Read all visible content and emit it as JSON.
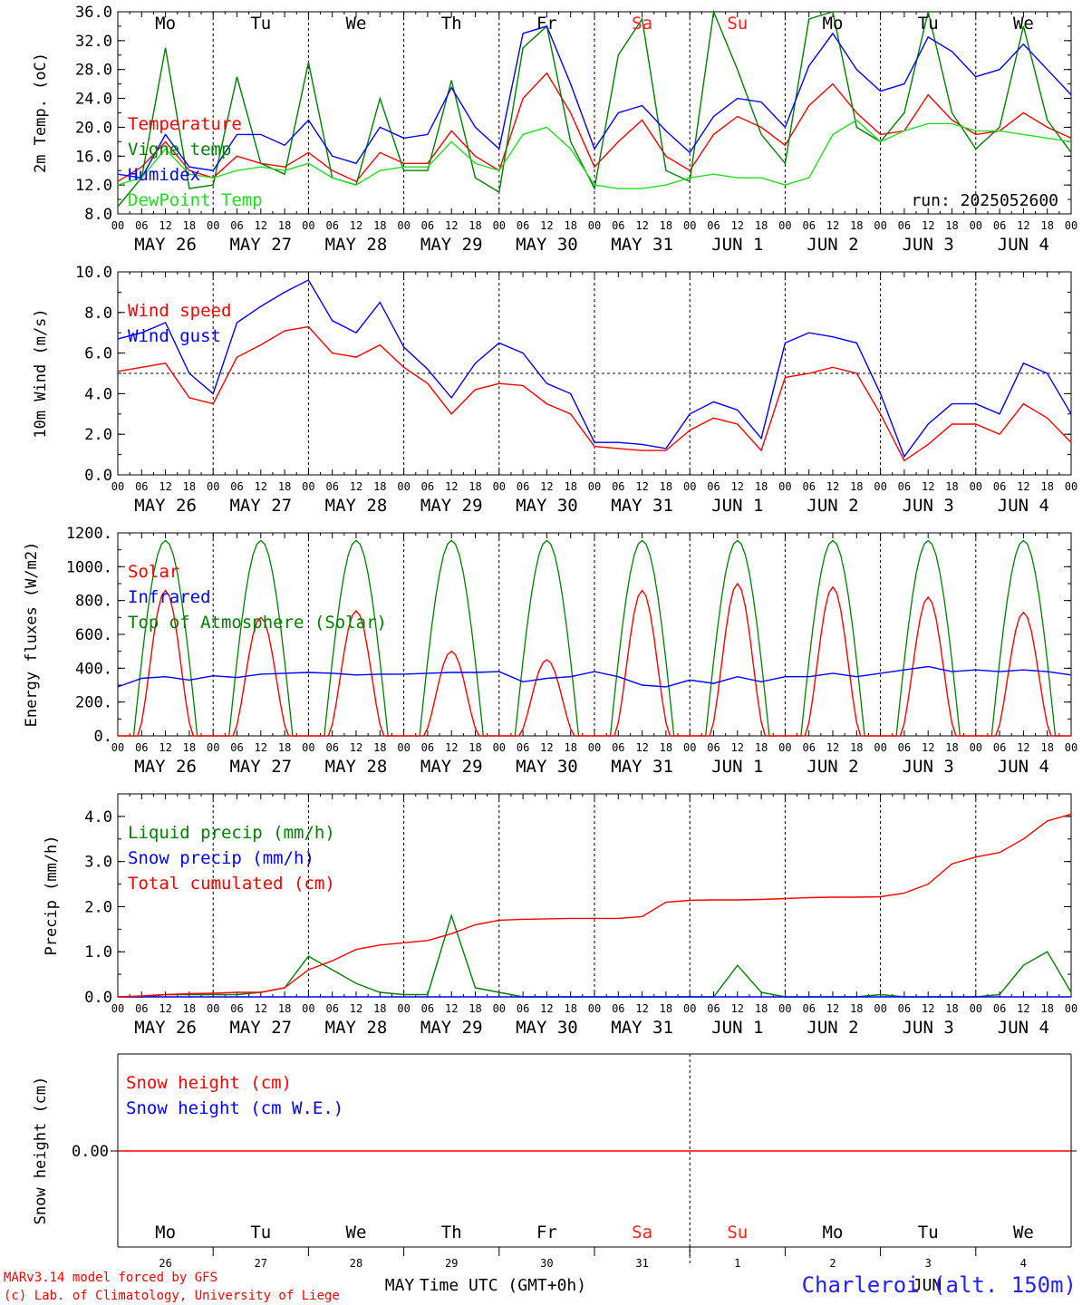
{
  "days": {
    "weekday_labels": [
      "Mo",
      "Tu",
      "We",
      "Th",
      "Fr",
      "Sa",
      "Su",
      "Mo",
      "Tu",
      "We"
    ],
    "weekend_color": "#ff2020",
    "date_labels": [
      "MAY 26",
      "MAY 27",
      "MAY 28",
      "MAY 29",
      "MAY 30",
      "MAY 31",
      "JUN  1",
      "JUN  2",
      "JUN  3",
      "JUN  4"
    ],
    "hour_ticks": [
      "00",
      "06",
      "12",
      "18"
    ],
    "final_hour": "00",
    "bottom_day_numbers": [
      "26",
      "27",
      "28",
      "29",
      "30",
      "31",
      "1",
      "2",
      "3",
      "4"
    ],
    "bottom_months": [
      "MAY",
      "JUN"
    ]
  },
  "footer": {
    "model": "MARv3.14 model forced by GFS",
    "credit": "(c) Lab. of Climatology, University of Liege",
    "axis_title": "Time UTC (GMT+0h)",
    "location": "Charleroi (alt. 150m)"
  },
  "colors": {
    "red": "#ff0000",
    "green": "#008000",
    "blue": "#0000ff",
    "lightgreen": "#22dd22",
    "axis": "#000000"
  },
  "chart_data": [
    {
      "id": "temperature",
      "type": "line",
      "ylabel": "2m Temp. (oC)",
      "ylim": [
        8,
        36
      ],
      "yticks": [
        8.0,
        12.0,
        16.0,
        20.0,
        24.0,
        28.0,
        32.0,
        36.0
      ],
      "ytick_labels": [
        "8.0",
        "12.0",
        "16.0",
        "20.0",
        "24.0",
        "28.0",
        "32.0",
        "36.0"
      ],
      "annotation": "run: 2025052600",
      "x_hours": [
        0,
        6,
        12,
        18,
        24,
        30,
        36,
        42,
        48,
        54,
        60,
        66,
        72,
        78,
        84,
        90,
        96,
        102,
        108,
        114,
        120,
        126,
        132,
        138,
        144,
        150,
        156,
        162,
        168,
        174,
        180,
        186,
        192,
        198,
        204,
        210,
        216,
        222,
        228,
        234,
        240
      ],
      "series": [
        {
          "name": "Temperature",
          "color": "#ff0000",
          "values": [
            12.5,
            14.5,
            18.0,
            14.0,
            13.0,
            16.0,
            15.0,
            14.5,
            16.5,
            14.0,
            12.5,
            16.5,
            15.0,
            15.0,
            19.5,
            16.0,
            14.0,
            24.0,
            27.5,
            22.0,
            14.5,
            18.0,
            21.0,
            16.0,
            14.0,
            19.0,
            21.5,
            20.0,
            17.5,
            23.0,
            26.0,
            22.0,
            19.0,
            19.5,
            24.5,
            21.0,
            19.0,
            19.5,
            22.0,
            20.0,
            18.5
          ]
        },
        {
          "name": "Vigne temp",
          "color": "#008000",
          "values": [
            9.0,
            13.0,
            31.0,
            11.5,
            12.0,
            27.0,
            15.0,
            13.5,
            29.0,
            13.0,
            12.0,
            24.0,
            14.0,
            14.0,
            26.5,
            13.0,
            11.0,
            31.0,
            34.0,
            18.0,
            11.5,
            30.0,
            35.0,
            14.0,
            12.5,
            36.0,
            28.0,
            19.0,
            15.0,
            35.0,
            36.0,
            20.0,
            18.0,
            22.0,
            36.0,
            22.0,
            17.0,
            20.0,
            34.0,
            21.0,
            16.5
          ]
        },
        {
          "name": "Humidex",
          "color": "#0000ff",
          "values": [
            13.5,
            13.0,
            19.0,
            14.5,
            14.0,
            19.0,
            19.0,
            17.5,
            21.0,
            16.0,
            15.0,
            20.0,
            18.5,
            19.0,
            25.5,
            20.0,
            17.0,
            33.0,
            34.0,
            26.0,
            17.0,
            22.0,
            23.0,
            19.5,
            16.5,
            21.5,
            24.0,
            23.5,
            20.0,
            28.5,
            33.0,
            28.0,
            25.0,
            26.0,
            32.5,
            30.5,
            27.0,
            28.0,
            31.5,
            28.0,
            24.5
          ]
        },
        {
          "name": "DewPoint Temp",
          "color": "#22dd22",
          "values": [
            12.0,
            13.0,
            17.0,
            13.5,
            13.0,
            14.0,
            14.5,
            14.0,
            15.0,
            13.0,
            12.0,
            14.0,
            14.5,
            14.5,
            18.0,
            15.0,
            14.0,
            19.0,
            20.0,
            17.0,
            12.0,
            11.5,
            11.5,
            12.0,
            13.0,
            13.5,
            13.0,
            13.0,
            12.0,
            13.0,
            19.0,
            21.0,
            18.0,
            19.5,
            20.5,
            20.5,
            19.5,
            19.5,
            19.0,
            18.5,
            18.0
          ]
        }
      ]
    },
    {
      "id": "wind",
      "type": "line",
      "ylabel": "10m Wind (m/s)",
      "ylim": [
        0,
        10
      ],
      "yticks": [
        0,
        2,
        4,
        6,
        8,
        10
      ],
      "ytick_labels": [
        "0.0",
        "2.0",
        "4.0",
        "6.0",
        "8.0",
        "10.0"
      ],
      "reference_line": 5.0,
      "x_hours": [
        0,
        6,
        12,
        18,
        24,
        30,
        36,
        42,
        48,
        54,
        60,
        66,
        72,
        78,
        84,
        90,
        96,
        102,
        108,
        114,
        120,
        126,
        132,
        138,
        144,
        150,
        156,
        162,
        168,
        174,
        180,
        186,
        192,
        198,
        204,
        210,
        216,
        222,
        228,
        234,
        240
      ],
      "series": [
        {
          "name": "Wind speed",
          "color": "#ff0000",
          "values": [
            5.1,
            5.3,
            5.5,
            3.8,
            3.5,
            5.8,
            6.4,
            7.1,
            7.3,
            6.0,
            5.8,
            6.4,
            5.3,
            4.5,
            3.0,
            4.2,
            4.5,
            4.4,
            3.5,
            3.0,
            1.4,
            1.3,
            1.2,
            1.2,
            2.2,
            2.8,
            2.5,
            1.2,
            4.8,
            5.0,
            5.3,
            5.0,
            3.0,
            0.7,
            1.5,
            2.5,
            2.5,
            2.0,
            3.5,
            2.8,
            1.6
          ]
        },
        {
          "name": "Wind gust",
          "color": "#0000ff",
          "values": [
            6.7,
            7.0,
            7.5,
            5.0,
            4.0,
            7.5,
            8.3,
            9.0,
            9.6,
            7.6,
            7.0,
            8.5,
            6.3,
            5.2,
            3.8,
            5.5,
            6.5,
            6.0,
            4.5,
            4.0,
            1.6,
            1.6,
            1.5,
            1.3,
            3.0,
            3.6,
            3.2,
            1.8,
            6.5,
            7.0,
            6.8,
            6.5,
            4.0,
            0.9,
            2.5,
            3.5,
            3.5,
            3.0,
            5.5,
            5.0,
            3.0
          ]
        }
      ]
    },
    {
      "id": "energy",
      "type": "line",
      "ylabel": "Energy fluxes (W/m2)",
      "ylim": [
        0,
        1200
      ],
      "yticks": [
        0,
        200,
        400,
        600,
        800,
        1000,
        1200
      ],
      "ytick_labels": [
        "0.",
        "200.",
        "400.",
        "600.",
        "800.",
        "1000.",
        "1200."
      ],
      "solar_peaks": [
        860,
        700,
        740,
        500,
        450,
        860,
        900,
        880,
        820,
        730
      ],
      "toa_peak": 1155,
      "infrared_values": [
        290,
        340,
        350,
        330,
        355,
        345,
        365,
        370,
        375,
        370,
        360,
        365,
        365,
        370,
        375,
        375,
        380,
        320,
        340,
        350,
        380,
        350,
        300,
        290,
        330,
        310,
        350,
        320,
        350,
        350,
        370,
        350,
        370,
        390,
        410,
        380,
        390,
        380,
        390,
        380,
        360
      ],
      "series": [
        {
          "name": "Solar",
          "color": "#ff0000"
        },
        {
          "name": "Infrared",
          "color": "#0000ff"
        },
        {
          "name": "Top of Atmosphere (Solar)",
          "color": "#008000"
        }
      ]
    },
    {
      "id": "precip",
      "type": "line",
      "ylabel": "Precip (mm/h)",
      "ylim": [
        0,
        4.5
      ],
      "yticks": [
        0,
        1,
        2,
        3,
        4
      ],
      "ytick_labels": [
        "0.0",
        "1.0",
        "2.0",
        "3.0",
        "4.0"
      ],
      "x_hours": [
        0,
        6,
        12,
        18,
        24,
        30,
        36,
        42,
        48,
        54,
        60,
        66,
        72,
        78,
        84,
        90,
        96,
        102,
        108,
        114,
        120,
        126,
        132,
        138,
        144,
        150,
        156,
        162,
        168,
        174,
        180,
        186,
        192,
        198,
        204,
        210,
        216,
        222,
        228,
        234,
        240
      ],
      "series": [
        {
          "name": "Liquid precip (mm/h)",
          "color": "#008000",
          "values": [
            0,
            0,
            0.05,
            0.05,
            0.05,
            0.05,
            0.1,
            0.2,
            0.9,
            0.6,
            0.3,
            0.1,
            0.05,
            0.05,
            1.8,
            0.2,
            0.1,
            0,
            0,
            0,
            0,
            0,
            0,
            0,
            0,
            0,
            0.7,
            0.1,
            0,
            0,
            0,
            0,
            0.05,
            0,
            0,
            0,
            0,
            0.05,
            0.7,
            1.0,
            0.1
          ]
        },
        {
          "name": "Snow precip (mm/h)",
          "color": "#0000ff",
          "values": [
            0,
            0,
            0,
            0,
            0,
            0,
            0,
            0,
            0,
            0,
            0,
            0,
            0,
            0,
            0,
            0,
            0,
            0,
            0,
            0,
            0,
            0,
            0,
            0,
            0,
            0,
            0,
            0,
            0,
            0,
            0,
            0,
            0,
            0,
            0,
            0,
            0,
            0,
            0,
            0,
            0
          ]
        },
        {
          "name": "Total cumulated (cm)",
          "color": "#ff0000",
          "values": [
            0.0,
            0.02,
            0.05,
            0.07,
            0.08,
            0.1,
            0.1,
            0.2,
            0.6,
            0.8,
            1.05,
            1.15,
            1.2,
            1.25,
            1.4,
            1.6,
            1.7,
            1.72,
            1.73,
            1.74,
            1.74,
            1.74,
            1.78,
            2.1,
            2.14,
            2.15,
            2.15,
            2.16,
            2.18,
            2.2,
            2.21,
            2.21,
            2.22,
            2.3,
            2.5,
            2.95,
            3.1,
            3.2,
            3.5,
            3.9,
            4.05
          ]
        }
      ]
    },
    {
      "id": "snow",
      "type": "line",
      "ylabel": "Snow height (cm)",
      "ytick_labels": [
        "0.00"
      ],
      "series": [
        {
          "name": "Snow height (cm)",
          "color": "#ff0000",
          "values": [
            0,
            0
          ]
        },
        {
          "name": "Snow height (cm W.E.)",
          "color": "#0000ff",
          "values": [
            0,
            0
          ]
        }
      ]
    }
  ]
}
